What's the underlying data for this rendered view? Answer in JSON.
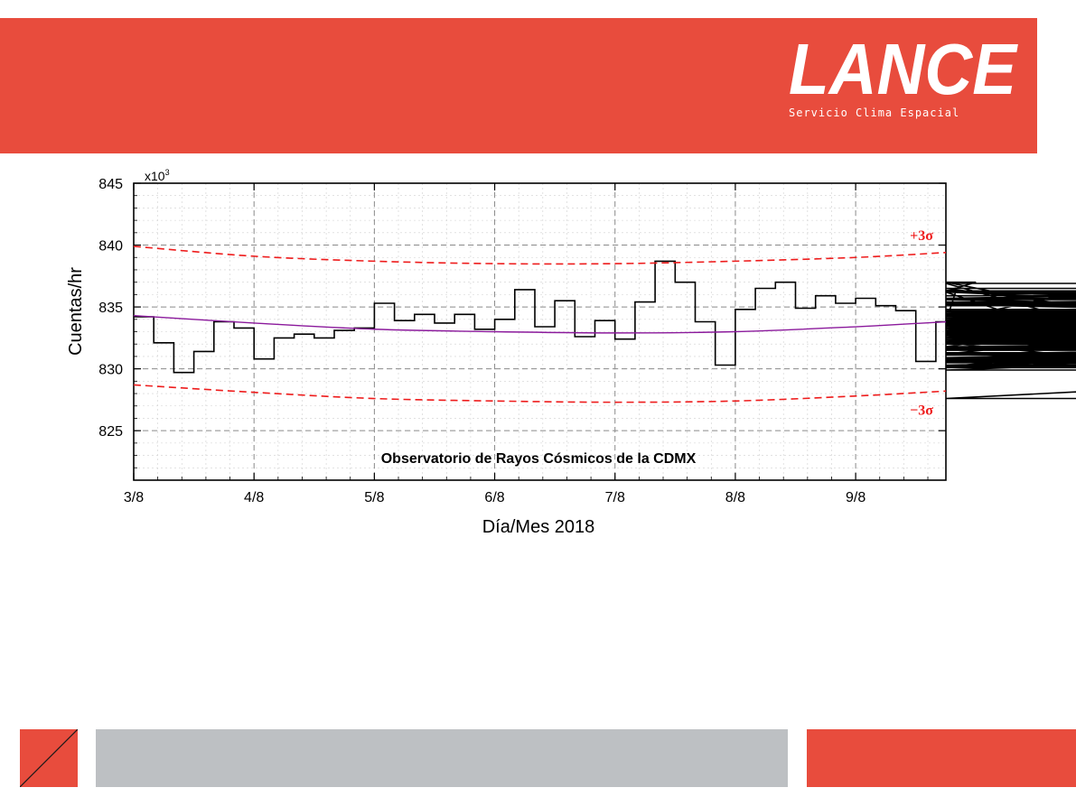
{
  "banner": {
    "logo_text": "LANCE",
    "subtitle": "Servicio Clima Espacial"
  },
  "chart_data": {
    "type": "line",
    "title": "Observatorio de Rayos Cósmicos de la CDMX",
    "xlabel": "Día/Mes 2018",
    "ylabel": "Cuentas/hr",
    "y_multiplier": "x10",
    "y_multiplier_exp": "3",
    "x_ticks": [
      "3/8",
      "4/8",
      "5/8",
      "6/8",
      "7/8",
      "8/8",
      "9/8"
    ],
    "xlim": [
      0,
      6.75
    ],
    "y_ticks": [
      "825",
      "830",
      "835",
      "840",
      "845"
    ],
    "ylim": [
      821,
      845
    ],
    "grid": true,
    "series": [
      {
        "style": "step",
        "color": "#000000",
        "step_hours": 4,
        "values": [
          834.2,
          832.1,
          829.7,
          831.4,
          833.8,
          833.3,
          830.8,
          832.5,
          832.8,
          832.5,
          833.1,
          833.3,
          835.3,
          833.9,
          834.4,
          833.7,
          834.4,
          833.2,
          834.0,
          836.4,
          833.4,
          835.5,
          832.6,
          833.9,
          832.4,
          835.4,
          838.7,
          837.0,
          833.8,
          830.3,
          834.8,
          836.5,
          837.0,
          834.9,
          835.9,
          835.3,
          835.7,
          835.1,
          834.7,
          830.6,
          833.8,
          836.3,
          837.0,
          836.2,
          834.3,
          833.7,
          833.0,
          834.3,
          833.9,
          836.9,
          832.6,
          832.1,
          830.2,
          831.8,
          832.0,
          832.1,
          834.7,
          831.8,
          835.3,
          835.7,
          836.2,
          834.8,
          833.3,
          832.3,
          831.2,
          835.2,
          834.3,
          832.8,
          836.5,
          830.5,
          833.1,
          829.9,
          831.8,
          832.1,
          832.8,
          833.0,
          827.6,
          830.6,
          833.3,
          832.2,
          833.6,
          834.8,
          833.2,
          832.9,
          833.5,
          836.3,
          834.0,
          834.2,
          833.2,
          830.8,
          834.8,
          832.5,
          831.2,
          830.5,
          833.0,
          831.2,
          830.9,
          830.6,
          833.2,
          832.6,
          833.3,
          832.7,
          830.1,
          831.3,
          830.8,
          830.3,
          832.4,
          833.1,
          832.1,
          830.7,
          832.9,
          831.3,
          831.1,
          831.5,
          836.2,
          835.1,
          835.6,
          832.9,
          832.4,
          833.6,
          833.1,
          834.3,
          834.8,
          832.8,
          834.7,
          830.8,
          833.4,
          830.2,
          833.4,
          830.9,
          832.2,
          831.1,
          834.6,
          832.0,
          833.3,
          832.4,
          834.1,
          830.9,
          834.1,
          833.8,
          834.0,
          832.7,
          834.5,
          834.6,
          832.4,
          835.4,
          831.6,
          835.2,
          831.6,
          835.9,
          836.2,
          832.6,
          836.2,
          835.3,
          835.4,
          834.7,
          833.4,
          834.4,
          833.7,
          833.9,
          832.0,
          831.7,
          833.3,
          833.6
        ]
      },
      {
        "style": "smooth",
        "color": "#8b1a9c",
        "points": [
          [
            0,
            834.3
          ],
          [
            1,
            833.7
          ],
          [
            2,
            833.2
          ],
          [
            3,
            833.0
          ],
          [
            4,
            832.9
          ],
          [
            5,
            833.0
          ],
          [
            6,
            833.4
          ],
          [
            6.75,
            833.8
          ]
        ]
      },
      {
        "style": "dashed",
        "color": "#ee1c1c",
        "label": "+3σ",
        "points": [
          [
            0,
            839.9
          ],
          [
            1,
            839.1
          ],
          [
            2,
            838.7
          ],
          [
            3,
            838.5
          ],
          [
            4,
            838.5
          ],
          [
            5,
            838.7
          ],
          [
            6,
            839.0
          ],
          [
            6.75,
            839.4
          ]
        ]
      },
      {
        "style": "dashed",
        "color": "#ee1c1c",
        "label": "−3σ",
        "points": [
          [
            0,
            828.7
          ],
          [
            1,
            828.1
          ],
          [
            2,
            827.6
          ],
          [
            3,
            827.4
          ],
          [
            4,
            827.3
          ],
          [
            5,
            827.4
          ],
          [
            6,
            827.8
          ],
          [
            6.75,
            828.2
          ]
        ]
      }
    ]
  }
}
